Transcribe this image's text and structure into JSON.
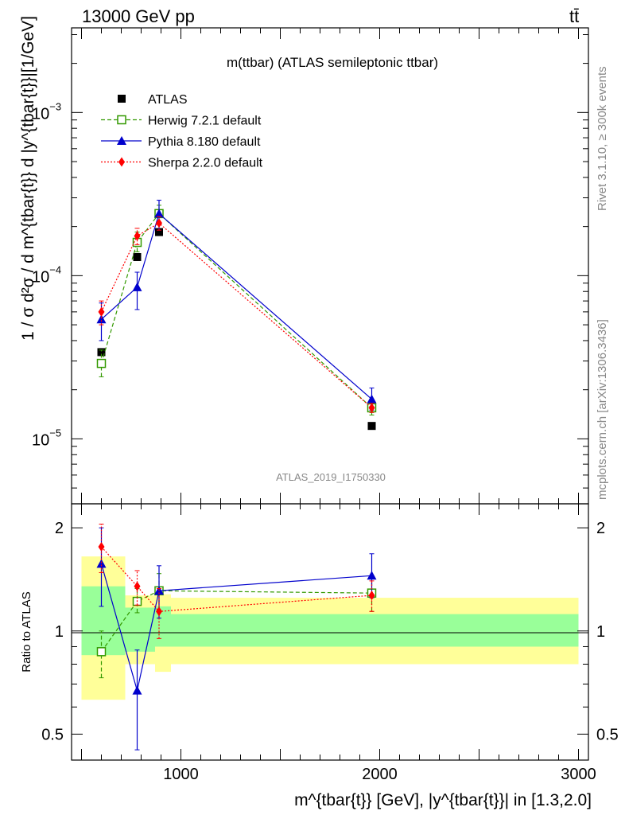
{
  "header": {
    "process": "13000 GeV pp",
    "channel": "tt̄"
  },
  "side": {
    "rivet": "Rivet 3.1.10, ≥ 300k events",
    "mcplots": "mcplots.cern.ch [arXiv:1306.3436]"
  },
  "chart_data": [
    {
      "type": "scatter",
      "panel": "main",
      "title": "m(ttbar) (ATLAS semileptonic ttbar)",
      "analysis_label": "ATLAS_2019_I1750330",
      "ylabel": "1 / σ d²σ / d m^{tbar{t}} d |y^{tbar{t}}|[1/GeV]",
      "yscale": "log",
      "ylim": [
        4e-06,
        0.0033
      ],
      "xlim": [
        450,
        3050
      ],
      "y_ticks": [
        {
          "v": 1e-05,
          "base": "10",
          "exp": "−5"
        },
        {
          "v": 0.0001,
          "base": "10",
          "exp": "−4"
        },
        {
          "v": 0.001,
          "base": "10",
          "exp": "−3"
        }
      ],
      "legend_position": "top-left",
      "series": [
        {
          "name": "ATLAS",
          "color": "#000000",
          "marker": "square",
          "x": [
            600,
            780,
            890,
            1960
          ],
          "y": [
            3.4e-05,
            0.00013,
            0.000185,
            1.2e-05
          ]
        },
        {
          "name": "Herwig 7.2.1 default",
          "color": "#339900",
          "marker": "open-square",
          "dash": "5,3",
          "x": [
            600,
            780,
            890,
            1960
          ],
          "y": [
            2.9e-05,
            0.00016,
            0.00024,
            1.55e-05
          ],
          "ylo": [
            2.4e-05,
            0.00014,
            0.00021,
            1.4e-05
          ],
          "yhi": [
            3.5e-05,
            0.000185,
            0.00027,
            1.7e-05
          ]
        },
        {
          "name": "Pythia 8.180 default",
          "color": "#0000cc",
          "marker": "triangle",
          "x": [
            600,
            780,
            890,
            1960
          ],
          "y": [
            5.4e-05,
            8.5e-05,
            0.00024,
            1.75e-05
          ],
          "ylo": [
            4e-05,
            6.2e-05,
            0.00019,
            1.5e-05
          ],
          "yhi": [
            6.8e-05,
            0.000105,
            0.00029,
            2.05e-05
          ]
        },
        {
          "name": "Sherpa 2.2.0 default",
          "color": "#ff0000",
          "marker": "diamond",
          "dash": "2,2",
          "x": [
            600,
            780,
            890,
            1960
          ],
          "y": [
            6e-05,
            0.000175,
            0.00021,
            1.55e-05
          ],
          "ylo": [
            5e-05,
            0.000155,
            0.00019,
            1.45e-05
          ],
          "yhi": [
            7e-05,
            0.000195,
            0.00023,
            1.65e-05
          ]
        }
      ]
    },
    {
      "type": "scatter",
      "panel": "ratio",
      "ylabel": "Ratio to ATLAS",
      "xlabel": "m^{tbar{t}} [GeV], |y^{tbar{t}}| in [1.3,2.0]",
      "yscale": "log",
      "ylim": [
        0.42,
        2.35
      ],
      "xlim": [
        450,
        3050
      ],
      "y_ticks": [
        {
          "v": 0.5,
          "label": "0.5"
        },
        {
          "v": 1,
          "label": "1"
        },
        {
          "v": 2,
          "label": "2"
        }
      ],
      "x_ticks": [
        {
          "v": 1000,
          "label": "1000"
        },
        {
          "v": 2000,
          "label": "2000"
        },
        {
          "v": 3000,
          "label": "3000"
        }
      ],
      "bands": [
        {
          "x0": 500,
          "x1": 720,
          "yellow": [
            0.63,
            1.65
          ],
          "green": [
            0.85,
            1.35
          ]
        },
        {
          "x0": 720,
          "x1": 870,
          "yellow": [
            0.8,
            1.27
          ],
          "green": [
            0.87,
            1.17
          ]
        },
        {
          "x0": 870,
          "x1": 950,
          "yellow": [
            0.76,
            1.28
          ],
          "green": [
            0.9,
            1.18
          ]
        },
        {
          "x0": 950,
          "x1": 3000,
          "yellow": [
            0.8,
            1.25
          ],
          "green": [
            0.9,
            1.12
          ]
        }
      ],
      "series": [
        {
          "name": "Herwig 7.2.1 default",
          "color": "#339900",
          "marker": "open-square",
          "dash": "5,3",
          "x": [
            600,
            780,
            890,
            1960
          ],
          "y": [
            0.87,
            1.22,
            1.31,
            1.29
          ],
          "ylo": [
            0.73,
            1.13,
            1.15,
            1.14
          ],
          "yhi": [
            1.0,
            1.33,
            1.47,
            1.43
          ]
        },
        {
          "name": "Pythia 8.180 default",
          "color": "#0000cc",
          "marker": "triangle",
          "x": [
            600,
            780,
            890,
            1960
          ],
          "y": [
            1.57,
            0.67,
            1.31,
            1.45
          ],
          "ylo": [
            1.18,
            0.45,
            1.09,
            1.25
          ],
          "yhi": [
            2.0,
            0.88,
            1.55,
            1.68
          ]
        },
        {
          "name": "Sherpa 2.2.0 default",
          "color": "#ff0000",
          "marker": "diamond",
          "dash": "2,2",
          "x": [
            600,
            780,
            890,
            1960
          ],
          "y": [
            1.76,
            1.35,
            1.14,
            1.27
          ],
          "ylo": [
            1.48,
            1.19,
            0.95,
            1.14
          ],
          "yhi": [
            2.05,
            1.5,
            1.33,
            1.4
          ]
        }
      ]
    }
  ]
}
